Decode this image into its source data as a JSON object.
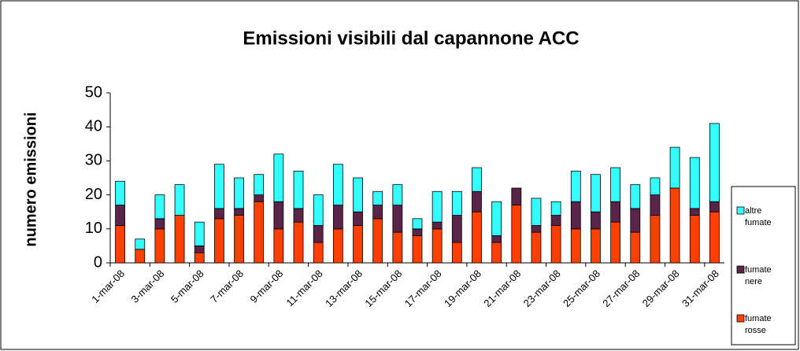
{
  "chart_data": {
    "type": "stacked_bar",
    "title": "Emissioni visibili dal capannone ACC",
    "y_label": "numero emissioni",
    "categories": [
      "1-mar-08",
      null,
      "3-mar-08",
      null,
      "5-mar-08",
      null,
      "7-mar-08",
      null,
      "9-mar-08",
      null,
      "11-mar-08",
      null,
      "13-mar-08",
      null,
      "15-mar-08",
      null,
      "17-mar-08",
      null,
      "19-mar-08",
      null,
      "21-mar-08",
      null,
      "23-mar-08",
      null,
      "25-mar-08",
      null,
      "27-mar-08",
      null,
      "29-mar-08",
      null,
      "31-mar-08"
    ],
    "series": [
      {
        "name": "fumate rosse",
        "color": "#ff4000",
        "values": [
          11,
          4,
          10,
          14,
          3,
          13,
          14,
          18,
          10,
          12,
          6,
          10,
          11,
          13,
          9,
          8,
          10,
          6,
          15,
          6,
          17,
          9,
          11,
          10,
          10,
          12,
          9,
          14,
          22,
          14,
          15
        ]
      },
      {
        "name": "fumate nere",
        "color": "#5a2448",
        "values": [
          6,
          0,
          3,
          0,
          2,
          3,
          2,
          2,
          8,
          4,
          5,
          7,
          4,
          4,
          8,
          2,
          2,
          8,
          6,
          2,
          5,
          2,
          3,
          8,
          5,
          6,
          7,
          6,
          0,
          2,
          3
        ]
      },
      {
        "name": "altre fumate",
        "color": "#33ffff",
        "values": [
          7,
          3,
          7,
          9,
          7,
          13,
          9,
          6,
          14,
          11,
          9,
          12,
          10,
          4,
          6,
          3,
          9,
          7,
          7,
          10,
          0,
          8,
          4,
          9,
          11,
          10,
          7,
          5,
          12,
          15,
          23
        ]
      }
    ],
    "ylim": [
      0,
      50
    ],
    "yticks": [
      0,
      10,
      20,
      30,
      40,
      50
    ],
    "grid": false,
    "legend": "right"
  }
}
